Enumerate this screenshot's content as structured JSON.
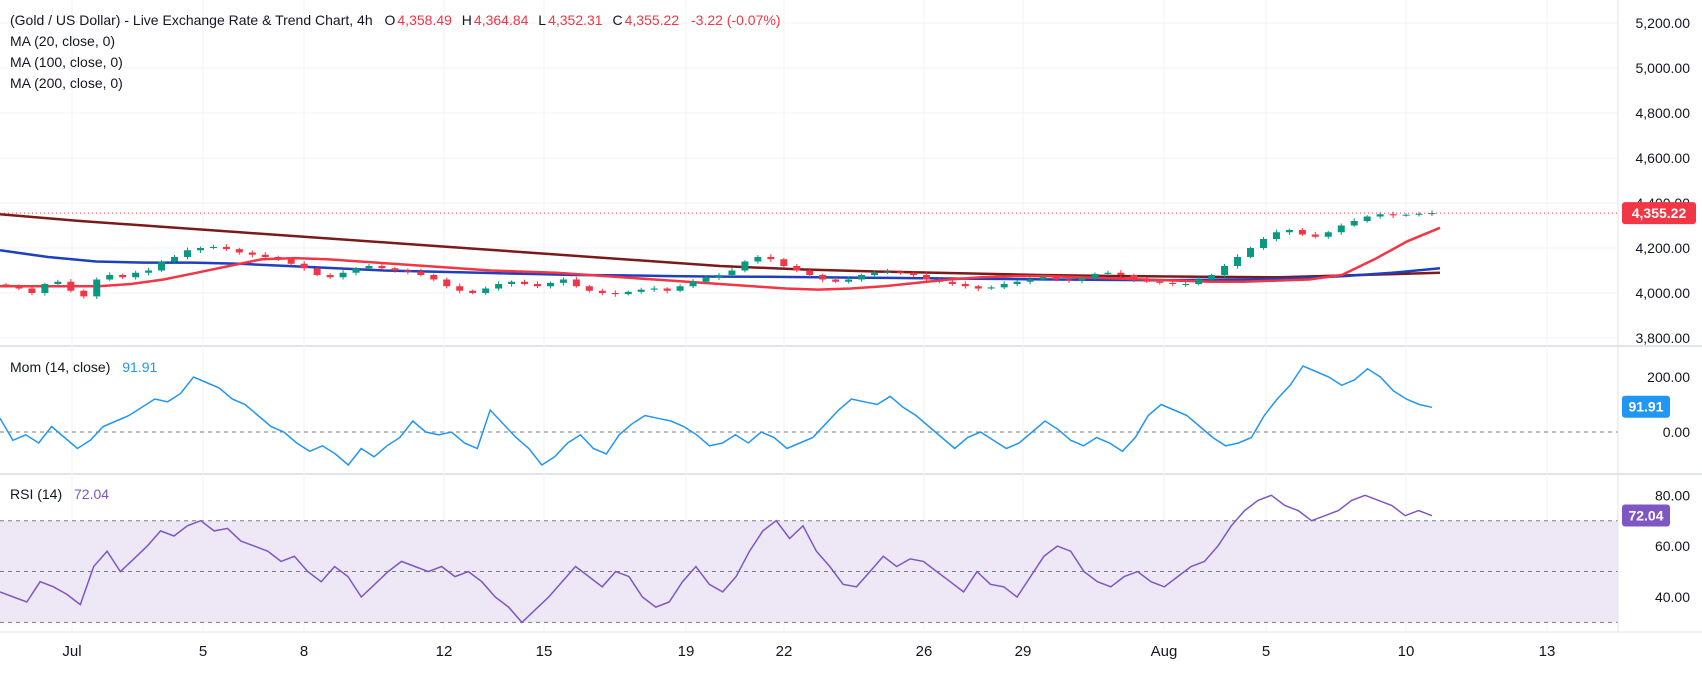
{
  "header": {
    "title": "(Gold / US Dollar) - Live Exchange Rate & Trend Chart, 4h",
    "open_label": "O",
    "open": "4,358.49",
    "high_label": "H",
    "high": "4,364.84",
    "low_label": "L",
    "low": "4,352.31",
    "close_label": "C",
    "close": "4,355.22",
    "change": "-3.22 (-0.07%)"
  },
  "indicators": {
    "ma20": "MA (20, close, 0)",
    "ma100": "MA (100, close, 0)",
    "ma200": "MA (200, close, 0)",
    "mom_label": "Mom (14, close)",
    "mom_value": "91.91",
    "rsi_label": "RSI (14)",
    "rsi_value": "72.04"
  },
  "colors": {
    "up": "#089981",
    "down": "#f23645",
    "ma20": "#f23645",
    "ma100": "#1e3fbf",
    "ma200": "#7b1a1a",
    "mom": "#2196f3",
    "rsi": "#7e57c2",
    "rsi_band": "#ede7f6",
    "grid": "#f0f3fa",
    "text": "#131722"
  },
  "chart_data": [
    {
      "type": "candlestick",
      "panel": "price",
      "timeframe": "4h",
      "x_tick_labels": [
        "Jul",
        "5",
        "8",
        "12",
        "15",
        "19",
        "22",
        "26",
        "29",
        "Aug",
        "5",
        "10",
        "13"
      ],
      "y_tick_labels": [
        "5,200.00",
        "5,000.00",
        "4,800.00",
        "4,600.00",
        "4,400.00",
        "4,200.00",
        "4,000.00",
        "3,800.00"
      ],
      "ylim": [
        3760,
        5260
      ],
      "last_price_label": "4,355.22",
      "close_series": [
        4030,
        4020,
        4000,
        4040,
        4050,
        4010,
        3985,
        4060,
        4080,
        4070,
        4090,
        4100,
        4140,
        4160,
        4190,
        4200,
        4205,
        4195,
        4180,
        4170,
        4160,
        4150,
        4130,
        4110,
        4080,
        4070,
        4090,
        4110,
        4120,
        4110,
        4100,
        4095,
        4080,
        4060,
        4030,
        4010,
        4000,
        4020,
        4040,
        4050,
        4040,
        4030,
        4045,
        4060,
        4030,
        4010,
        4000,
        3995,
        4005,
        4015,
        4020,
        4010,
        4030,
        4050,
        4070,
        4080,
        4100,
        4140,
        4160,
        4150,
        4120,
        4100,
        4080,
        4060,
        4050,
        4060,
        4080,
        4090,
        4095,
        4090,
        4080,
        4060,
        4050,
        4040,
        4030,
        4020,
        4025,
        4040,
        4050,
        4060,
        4070,
        4060,
        4055,
        4065,
        4085,
        4090,
        4080,
        4060,
        4050,
        4045,
        4040,
        4040,
        4060,
        4080,
        4120,
        4160,
        4200,
        4240,
        4270,
        4280,
        4260,
        4250,
        4270,
        4300,
        4320,
        4340,
        4350,
        4345,
        4348,
        4352,
        4355
      ],
      "ma20": [
        4030,
        4030,
        4030,
        4030,
        4040,
        4060,
        4090,
        4120,
        4150,
        4155,
        4150,
        4140,
        4130,
        4120,
        4110,
        4100,
        4095,
        4090,
        4080,
        4070,
        4060,
        4050,
        4040,
        4030,
        4020,
        4015,
        4020,
        4030,
        4045,
        4060,
        4070,
        4075,
        4075,
        4070,
        4065,
        4060,
        4055,
        4050,
        4050,
        4055,
        4060,
        4080,
        4150,
        4230,
        4290
      ],
      "ma100": [
        4190,
        4160,
        4140,
        4135,
        4135,
        4130,
        4120,
        4110,
        4100,
        4095,
        4090,
        4085,
        4080,
        4078,
        4075,
        4073,
        4072,
        4070,
        4068,
        4066,
        4064,
        4062,
        4060,
        4058,
        4057,
        4058,
        4060,
        4065,
        4075,
        4090,
        4110
      ],
      "ma200": [
        4350,
        4320,
        4295,
        4270,
        4245,
        4220,
        4195,
        4170,
        4145,
        4120,
        4105,
        4095,
        4088,
        4080,
        4075,
        4072,
        4070,
        4080,
        4090
      ]
    },
    {
      "type": "line",
      "panel": "momentum",
      "name": "Mom (14, close)",
      "y_tick_labels": [
        "200.00",
        "0.00"
      ],
      "ylim": [
        -120,
        280
      ],
      "baseline": 0,
      "values": [
        50,
        -30,
        -10,
        -40,
        20,
        -20,
        -60,
        -30,
        20,
        40,
        60,
        90,
        120,
        110,
        140,
        200,
        180,
        160,
        120,
        100,
        60,
        20,
        0,
        -40,
        -70,
        -50,
        -80,
        -120,
        -60,
        -90,
        -50,
        -20,
        40,
        0,
        -10,
        0,
        -40,
        -60,
        80,
        30,
        -20,
        -60,
        -120,
        -90,
        -40,
        -10,
        -60,
        -80,
        -10,
        30,
        60,
        50,
        40,
        20,
        -10,
        -50,
        -40,
        -10,
        -40,
        0,
        -20,
        -60,
        -40,
        -20,
        30,
        80,
        120,
        110,
        100,
        130,
        90,
        60,
        20,
        -20,
        -60,
        -20,
        0,
        -30,
        -60,
        -40,
        0,
        40,
        10,
        -30,
        -50,
        -20,
        -40,
        -70,
        -20,
        60,
        100,
        80,
        60,
        20,
        -20,
        -50,
        -40,
        -20,
        60,
        120,
        170,
        240,
        220,
        200,
        170,
        190,
        230,
        200,
        150,
        120,
        100,
        90
      ],
      "last_value_label": "91.91"
    },
    {
      "type": "line",
      "panel": "rsi",
      "name": "RSI (14)",
      "y_tick_labels": [
        "80.00",
        "60.00",
        "40.00"
      ],
      "ylim": [
        27,
        88
      ],
      "band": [
        30,
        70
      ],
      "midline": 50,
      "values": [
        42,
        40,
        38,
        46,
        44,
        41,
        37,
        52,
        58,
        50,
        55,
        60,
        66,
        64,
        68,
        70,
        66,
        67,
        62,
        60,
        58,
        54,
        56,
        50,
        46,
        52,
        48,
        40,
        45,
        50,
        54,
        52,
        50,
        52,
        48,
        50,
        46,
        40,
        36,
        30,
        35,
        40,
        46,
        52,
        48,
        44,
        50,
        48,
        40,
        36,
        38,
        46,
        52,
        45,
        42,
        48,
        58,
        66,
        70,
        63,
        68,
        58,
        52,
        45,
        44,
        50,
        56,
        52,
        55,
        54,
        50,
        46,
        42,
        50,
        45,
        44,
        40,
        48,
        56,
        60,
        58,
        50,
        46,
        44,
        48,
        50,
        46,
        44,
        48,
        52,
        54,
        60,
        68,
        74,
        78,
        80,
        76,
        74,
        70,
        72,
        74,
        78,
        80,
        78,
        76,
        72,
        74,
        72
      ],
      "last_value_label": "72.04"
    }
  ]
}
